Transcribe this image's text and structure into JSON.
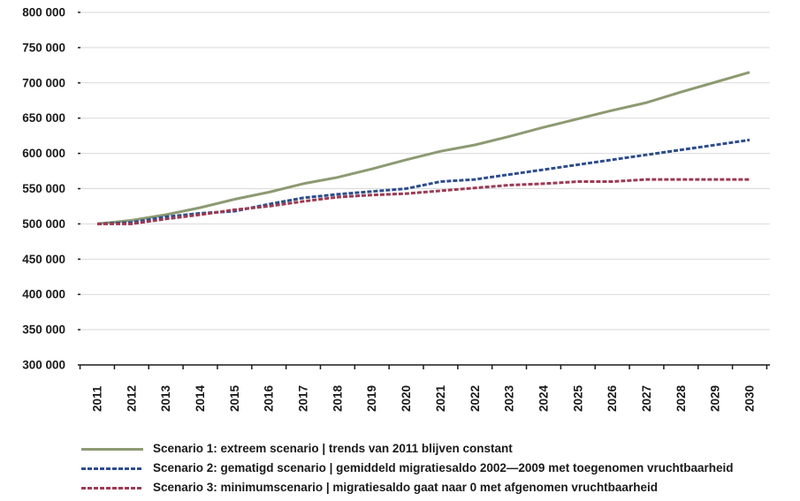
{
  "chart_data": {
    "type": "line",
    "title": "",
    "xlabel": "",
    "ylabel": "",
    "ylim": [
      300000,
      800000
    ],
    "yticks": [
      300000,
      350000,
      400000,
      450000,
      500000,
      550000,
      600000,
      650000,
      700000,
      750000,
      800000
    ],
    "ytick_labels": [
      "300 000",
      "350 000",
      "400 000",
      "450 000",
      "500 000",
      "550 000",
      "600 000",
      "650 000",
      "700 000",
      "750 000",
      "800 000"
    ],
    "x": [
      "2011",
      "2012",
      "2013",
      "2014",
      "2015",
      "2016",
      "2017",
      "2018",
      "2019",
      "2020",
      "2021",
      "2022",
      "2023",
      "2024",
      "2025",
      "2026",
      "2027",
      "2028",
      "2029",
      "2030"
    ],
    "grid": "horizontal",
    "legend_position": "bottom",
    "series": [
      {
        "name": "Scenario 1: extreem scenario | trends van 2011 blijven constant",
        "color": "#8c9a72",
        "style": "solid",
        "values": [
          500000,
          505000,
          513000,
          523000,
          535000,
          545000,
          557000,
          566000,
          578000,
          591000,
          603000,
          612000,
          624000,
          637000,
          649000,
          661000,
          672000,
          687000,
          701000,
          715000
        ]
      },
      {
        "name": "Scenario 2: gematigd scenario | gemiddeld migratiesaldo 2002—2009 met toegenomen vruchtbaarheid",
        "color": "#2e4d8c",
        "style": "dashed",
        "values": [
          500000,
          502000,
          510000,
          515000,
          518000,
          528000,
          537000,
          542000,
          546000,
          550000,
          560000,
          563000,
          570000,
          577000,
          584000,
          591000,
          598000,
          605000,
          612000,
          619000
        ]
      },
      {
        "name": "Scenario 3: minimumscenario | migratiesaldo gaat naar 0 met afgenomen vruchtbaarheid",
        "color": "#9b3b55",
        "style": "dashed",
        "values": [
          500000,
          500000,
          507000,
          513000,
          520000,
          525000,
          532000,
          538000,
          541000,
          543000,
          547000,
          551000,
          555000,
          557000,
          560000,
          560000,
          563000,
          563000,
          563000,
          563000
        ]
      }
    ]
  }
}
